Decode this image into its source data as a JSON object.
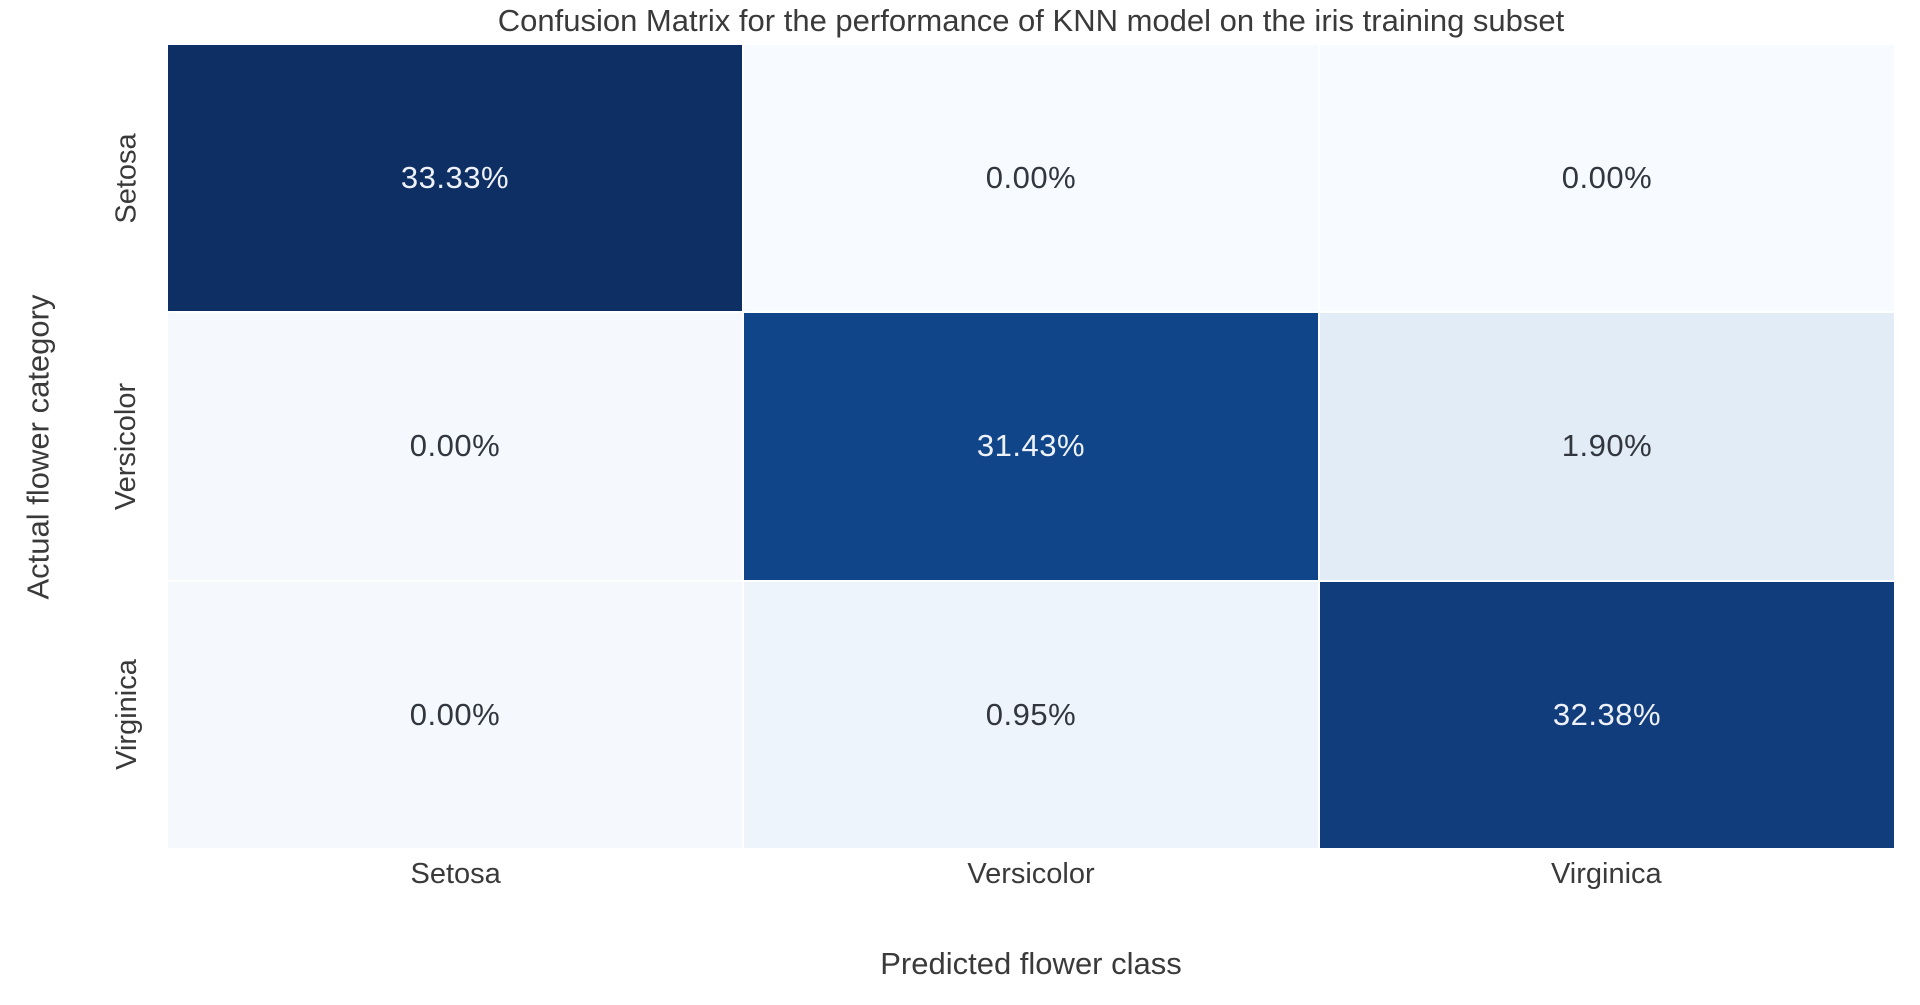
{
  "chart_data": {
    "type": "heatmap",
    "title": "Confusion Matrix for the performance of KNN model on the iris training subset",
    "xlabel": "Predicted flower class",
    "ylabel": "Actual flower category",
    "x_categories": [
      "Setosa",
      "Versicolor",
      "Virginica"
    ],
    "y_categories": [
      "Setosa",
      "Versicolor",
      "Virginica"
    ],
    "cell_labels": [
      [
        "33.33%",
        "0.00%",
        "0.00%"
      ],
      [
        "0.00%",
        "31.43%",
        "1.90%"
      ],
      [
        "0.00%",
        "0.95%",
        "32.38%"
      ]
    ],
    "values_percent": [
      [
        33.33,
        0.0,
        0.0
      ],
      [
        0.0,
        31.43,
        1.9
      ],
      [
        0.0,
        0.95,
        32.38
      ]
    ],
    "colormap": "Blues",
    "cell_colors": [
      [
        "#0e2f63",
        "#f7fbff",
        "#f7fbff"
      ],
      [
        "#f5f9fd",
        "#11458a",
        "#e2ecf7"
      ],
      [
        "#f5f9fd",
        "#eef4fb",
        "#123d7d"
      ]
    ],
    "dark_text_color": "#31363f",
    "light_text_color": "#eef2f8",
    "axis_text_color": "#3a3a3a",
    "grid_line_color": "#ffffff",
    "legend": "none",
    "grid": "off"
  }
}
